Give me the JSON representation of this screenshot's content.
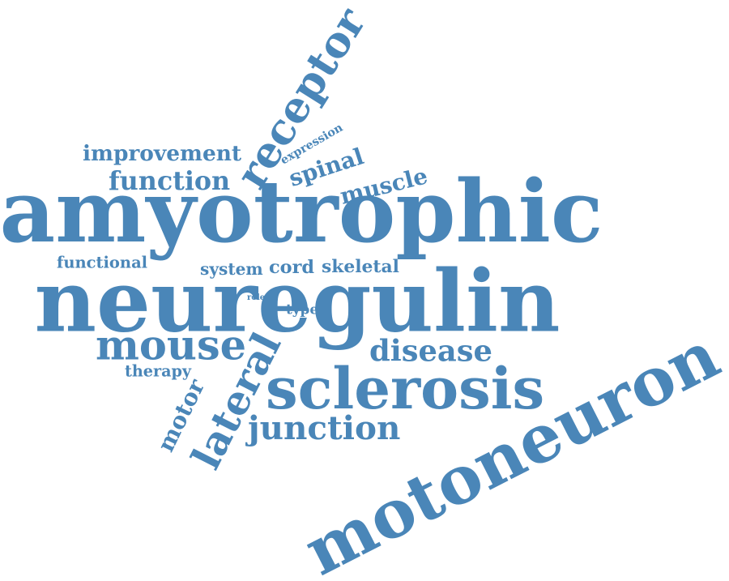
{
  "word_cloud": {
    "color": "#4a86b8",
    "words": {
      "amyotrophic": "amyotrophic",
      "neuregulin": "neuregulin",
      "motoneuron": "motoneuron",
      "sclerosis": "sclerosis",
      "receptor": "receptor",
      "lateral": "lateral",
      "mouse": "mouse",
      "junction": "junction",
      "disease": "disease",
      "motor": "motor",
      "spinal": "spinal",
      "muscle": "muscle",
      "function": "function",
      "improvement": "improvement",
      "functional": "functional",
      "system": "system",
      "cord": "cord",
      "skeletal": "skeletal",
      "therapy": "therapy",
      "expression": "expression",
      "role": "role",
      "type": "type"
    }
  }
}
